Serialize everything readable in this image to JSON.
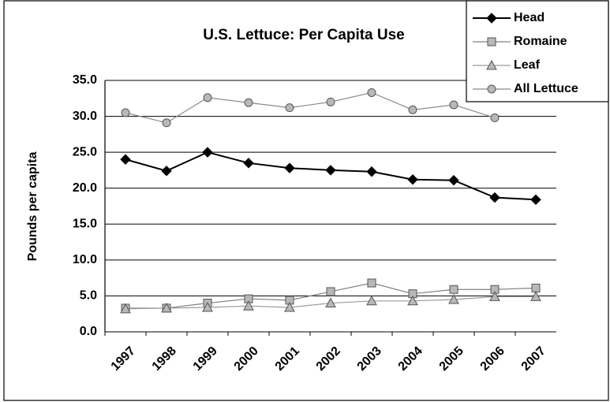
{
  "chart_data": {
    "type": "line",
    "title": "U.S. Lettuce: Per Capita Use",
    "y_label": "Pounds per capita",
    "categories": [
      "1997",
      "1998",
      "1999",
      "2000",
      "2001",
      "2002",
      "2003",
      "2004",
      "2005",
      "2006",
      "2007"
    ],
    "series": [
      {
        "name": "Head",
        "color": "#000000",
        "marker": "diamond",
        "values": [
          24.0,
          22.4,
          25.0,
          23.5,
          22.8,
          22.5,
          22.3,
          21.2,
          21.1,
          18.7,
          18.4
        ]
      },
      {
        "name": "Romaine",
        "color": "#808080",
        "marker": "square",
        "values": [
          3.3,
          3.3,
          4.0,
          4.6,
          4.4,
          5.6,
          6.8,
          5.3,
          5.9,
          5.9,
          6.1
        ]
      },
      {
        "name": "Leaf",
        "color": "#9a9a9a",
        "marker": "triangle",
        "values": [
          3.2,
          3.3,
          3.4,
          3.6,
          3.4,
          4.0,
          4.3,
          4.3,
          4.5,
          4.9,
          4.9
        ]
      },
      {
        "name": "All Lettuce",
        "color": "#8a8a8a",
        "marker": "circle",
        "values": [
          30.5,
          29.1,
          32.6,
          31.9,
          31.2,
          32.0,
          33.3,
          30.9,
          31.6,
          29.8,
          null
        ]
      }
    ],
    "ylim": [
      0,
      35
    ],
    "yticks": [
      {
        "value": 0,
        "label": "0.0"
      },
      {
        "value": 5,
        "label": "5.0"
      },
      {
        "value": 10,
        "label": "10.0"
      },
      {
        "value": 15,
        "label": "15.0"
      },
      {
        "value": 20,
        "label": "20.0"
      },
      {
        "value": 25,
        "label": "25.0"
      },
      {
        "value": 30,
        "label": "30.0"
      },
      {
        "value": 35,
        "label": "35.0"
      }
    ],
    "grid": true,
    "legend_position": "top-right"
  }
}
